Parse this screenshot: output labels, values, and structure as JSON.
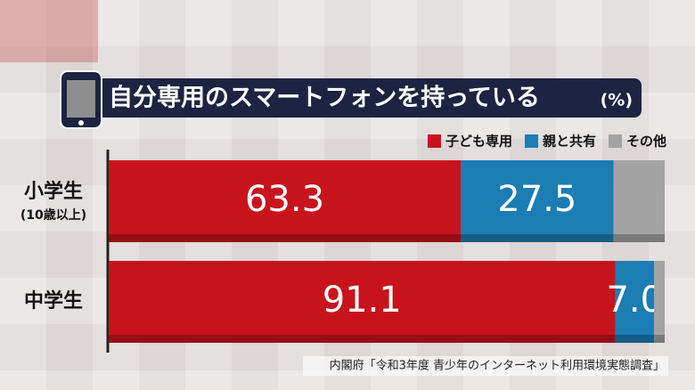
{
  "chart_data": {
    "type": "stacked-bar-horizontal",
    "title": "自分専用のスマートフォンを持っている",
    "unit": "(%)",
    "categories": [
      "小学生",
      "中学生"
    ],
    "category_notes": [
      "(10歳以上)",
      null
    ],
    "series": [
      {
        "name": "子ども専用",
        "color": "#c8131c",
        "values": [
          63.3,
          91.1
        ]
      },
      {
        "name": "親と共有",
        "color": "#1b7db3",
        "values": [
          27.5,
          7.0
        ],
        "value_labels": [
          "27.5",
          "7.0"
        ]
      },
      {
        "name": "その他",
        "color": "#a3a3a3",
        "values": [
          9.2,
          1.9
        ]
      }
    ],
    "xlim": [
      0,
      100
    ],
    "source": "内閣府「令和3年度 青少年のインターネット利用環境実態調査」"
  }
}
